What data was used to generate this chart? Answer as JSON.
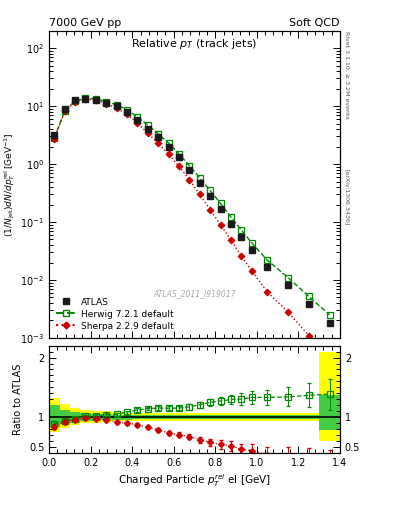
{
  "header_left": "7000 GeV pp",
  "header_right": "Soft QCD",
  "right_label": "Rivet 3.1.10; ≥ 3.2M events",
  "right_label2": "[arXiv:1306.3436]",
  "watermark": "ATLAS_2011_I919017",
  "ylabel_main": "(1/Njet)dN/dp$^{rel}_{T}$el [GeV$^{-1}$]",
  "ylabel_ratio": "Ratio to ATLAS",
  "xlabel": "Charged Particle $\\mathit{p}_{T}^{rel}$ el [GeV]",
  "title_text": "Relative $p_T$ (track jets)",
  "atlas_x": [
    0.025,
    0.075,
    0.125,
    0.175,
    0.225,
    0.275,
    0.325,
    0.375,
    0.425,
    0.475,
    0.525,
    0.575,
    0.625,
    0.675,
    0.725,
    0.775,
    0.825,
    0.875,
    0.925,
    0.975,
    1.05,
    1.15,
    1.25,
    1.35
  ],
  "atlas_y": [
    3.2,
    8.8,
    12.5,
    13.5,
    13.0,
    11.5,
    10.0,
    8.0,
    5.8,
    4.1,
    2.9,
    2.0,
    1.3,
    0.8,
    0.48,
    0.28,
    0.165,
    0.094,
    0.056,
    0.033,
    0.0165,
    0.0082,
    0.0038,
    0.0018
  ],
  "atlas_yerr": [
    0.12,
    0.25,
    0.35,
    0.38,
    0.37,
    0.32,
    0.28,
    0.22,
    0.16,
    0.12,
    0.085,
    0.058,
    0.038,
    0.024,
    0.015,
    0.009,
    0.006,
    0.0035,
    0.0022,
    0.0014,
    0.0008,
    0.0004,
    0.00022,
    0.00012
  ],
  "herwig_x": [
    0.025,
    0.075,
    0.125,
    0.175,
    0.225,
    0.275,
    0.325,
    0.375,
    0.425,
    0.475,
    0.525,
    0.575,
    0.625,
    0.675,
    0.725,
    0.775,
    0.825,
    0.875,
    0.925,
    0.975,
    1.05,
    1.15,
    1.25,
    1.35
  ],
  "herwig_y": [
    2.85,
    8.2,
    12.2,
    13.7,
    13.3,
    12.0,
    10.5,
    8.7,
    6.5,
    4.7,
    3.35,
    2.3,
    1.5,
    0.94,
    0.58,
    0.35,
    0.21,
    0.122,
    0.073,
    0.044,
    0.022,
    0.011,
    0.0052,
    0.0025
  ],
  "sherpa_x": [
    0.025,
    0.075,
    0.125,
    0.175,
    0.225,
    0.275,
    0.325,
    0.375,
    0.425,
    0.475,
    0.525,
    0.575,
    0.625,
    0.675,
    0.725,
    0.775,
    0.825,
    0.875,
    0.925,
    0.975,
    1.05,
    1.15,
    1.25,
    1.35
  ],
  "sherpa_y": [
    2.7,
    8.1,
    12.0,
    13.3,
    12.7,
    11.0,
    9.2,
    7.2,
    5.1,
    3.4,
    2.3,
    1.47,
    0.92,
    0.54,
    0.3,
    0.163,
    0.09,
    0.049,
    0.026,
    0.0145,
    0.0062,
    0.0028,
    0.0011,
    0.00035
  ],
  "herwig_ratio": [
    0.89,
    0.932,
    0.976,
    1.015,
    1.023,
    1.043,
    1.05,
    1.088,
    1.121,
    1.146,
    1.155,
    1.15,
    1.154,
    1.175,
    1.208,
    1.25,
    1.273,
    1.298,
    1.304,
    1.333,
    1.333,
    1.341,
    1.368,
    1.389
  ],
  "herwig_ratio_err": [
    0.04,
    0.035,
    0.028,
    0.025,
    0.025,
    0.025,
    0.025,
    0.025,
    0.028,
    0.03,
    0.033,
    0.036,
    0.04,
    0.045,
    0.052,
    0.06,
    0.07,
    0.082,
    0.095,
    0.11,
    0.13,
    0.16,
    0.2,
    0.26
  ],
  "sherpa_ratio": [
    0.844,
    0.92,
    0.96,
    0.985,
    0.977,
    0.957,
    0.92,
    0.9,
    0.879,
    0.829,
    0.793,
    0.735,
    0.708,
    0.675,
    0.625,
    0.582,
    0.545,
    0.521,
    0.464,
    0.439,
    0.376,
    0.341,
    0.289,
    0.194
  ],
  "sherpa_ratio_err": [
    0.04,
    0.035,
    0.028,
    0.025,
    0.025,
    0.025,
    0.025,
    0.025,
    0.028,
    0.03,
    0.033,
    0.036,
    0.04,
    0.045,
    0.052,
    0.06,
    0.07,
    0.082,
    0.095,
    0.11,
    0.13,
    0.16,
    0.2,
    0.26
  ],
  "band_x_edges": [
    0.0,
    0.05,
    0.1,
    0.15,
    0.2,
    0.25,
    0.3,
    0.35,
    0.4,
    0.45,
    0.5,
    0.55,
    0.6,
    0.65,
    0.7,
    0.75,
    0.8,
    0.85,
    0.9,
    0.95,
    1.0,
    1.1,
    1.2,
    1.3,
    1.4
  ],
  "band_yellow_low": [
    0.75,
    0.82,
    0.87,
    0.9,
    0.91,
    0.92,
    0.93,
    0.93,
    0.94,
    0.94,
    0.94,
    0.94,
    0.94,
    0.94,
    0.94,
    0.94,
    0.94,
    0.94,
    0.94,
    0.94,
    0.94,
    0.94,
    0.94,
    0.6
  ],
  "band_yellow_high": [
    1.32,
    1.22,
    1.16,
    1.12,
    1.11,
    1.1,
    1.09,
    1.08,
    1.07,
    1.07,
    1.07,
    1.07,
    1.07,
    1.07,
    1.07,
    1.07,
    1.07,
    1.07,
    1.07,
    1.07,
    1.07,
    1.07,
    1.07,
    2.1
  ],
  "band_green_low": [
    0.83,
    0.88,
    0.91,
    0.93,
    0.94,
    0.95,
    0.955,
    0.96,
    0.965,
    0.965,
    0.965,
    0.965,
    0.965,
    0.965,
    0.965,
    0.965,
    0.965,
    0.965,
    0.965,
    0.965,
    0.965,
    0.965,
    0.965,
    0.78
  ],
  "band_green_high": [
    1.2,
    1.13,
    1.09,
    1.07,
    1.06,
    1.05,
    1.04,
    1.04,
    1.035,
    1.035,
    1.035,
    1.035,
    1.035,
    1.035,
    1.035,
    1.035,
    1.035,
    1.035,
    1.035,
    1.035,
    1.035,
    1.035,
    1.035,
    1.38
  ],
  "xlim": [
    0.0,
    1.4
  ],
  "ylim_main": [
    0.001,
    200.0
  ],
  "ylim_ratio": [
    0.4,
    2.2
  ],
  "ratio_yticks": [
    0.5,
    1.0,
    2.0
  ],
  "ratio_yticklabels": [
    "0.5",
    "1",
    "2"
  ],
  "color_atlas": "#1a1a1a",
  "color_herwig": "#008800",
  "color_sherpa": "#cc0000",
  "color_band_yellow": "#ffff00",
  "color_band_green": "#44cc44"
}
